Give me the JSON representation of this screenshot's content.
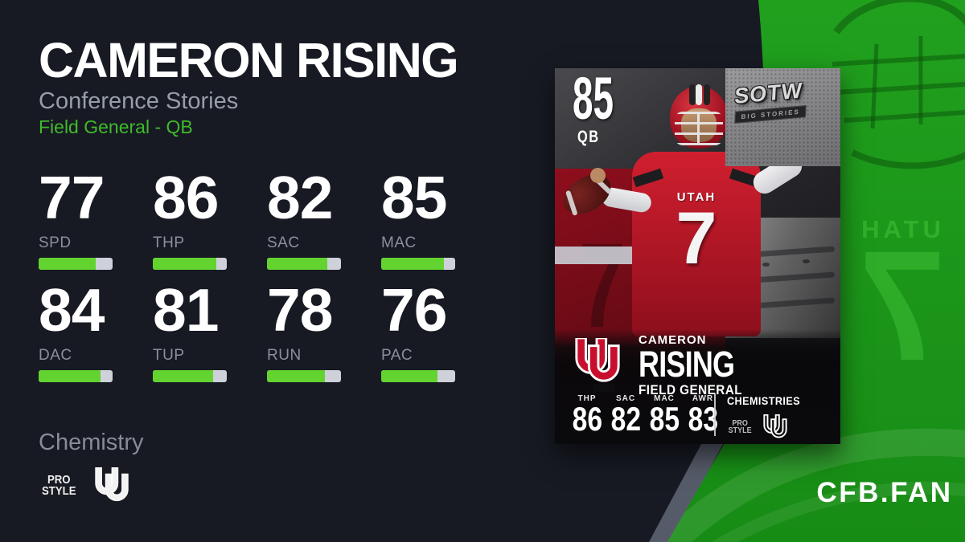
{
  "colors": {
    "navy": "#171a23",
    "band-green": "#1d9a1b",
    "band-green-dark": "#13870f",
    "accent-green": "#3fbb2b",
    "bar-green": "#62d32f",
    "bar-track": "#ced1da",
    "slate": "#565b69",
    "utah-red": "#b5121f"
  },
  "header": {
    "title": "CAMERON RISING",
    "subtitle": "Conference Stories",
    "archetype": "Field General - QB"
  },
  "stats": [
    {
      "label": "SPD",
      "value": 77
    },
    {
      "label": "THP",
      "value": 86
    },
    {
      "label": "SAC",
      "value": 82
    },
    {
      "label": "MAC",
      "value": 85
    },
    {
      "label": "DAC",
      "value": 84
    },
    {
      "label": "TUP",
      "value": 81
    },
    {
      "label": "RUN",
      "value": 78
    },
    {
      "label": "PAC",
      "value": 76
    }
  ],
  "chemistry": {
    "heading": "Chemistry",
    "pro_style_line1": "PRO",
    "pro_style_line2": "STYLE",
    "team_icon": "utah-uu-logo"
  },
  "card": {
    "overall": "85",
    "position": "QB",
    "badge": {
      "title": "SOTW",
      "subtitle": "BIG STORIES"
    },
    "team_name": "UTAH",
    "jersey_number": "7",
    "first_name": "CAMERON",
    "last_name": "RISING",
    "archetype": "FIELD GENERAL",
    "stats": [
      {
        "label": "THP",
        "value": 86
      },
      {
        "label": "SAC",
        "value": 82
      },
      {
        "label": "MAC",
        "value": 85
      },
      {
        "label": "AWR",
        "value": 83
      }
    ],
    "chemistries_label": "CHEMISTRIES",
    "chemistry_line1": "PRO",
    "chemistry_line2": "STYLE"
  },
  "watermark": {
    "team": "UTAH",
    "number": "7"
  },
  "branding": {
    "site": "CFB.FAN"
  }
}
